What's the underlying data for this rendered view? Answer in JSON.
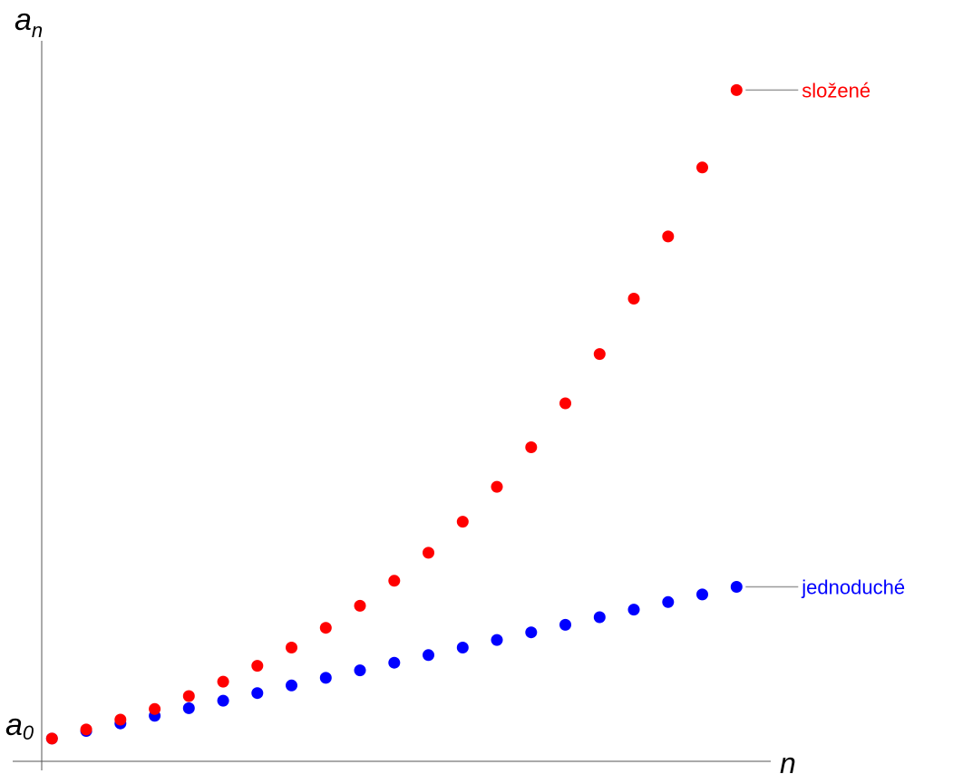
{
  "chart_data": {
    "type": "scatter",
    "title": "",
    "xlabel": "n",
    "ylabel": "a",
    "ylabel_subscript": "n",
    "y0_label": "a",
    "y0_label_subscript": "0",
    "x": [
      0,
      1,
      2,
      3,
      4,
      5,
      6,
      7,
      8,
      9,
      10,
      11,
      12,
      13,
      14,
      15,
      16,
      17,
      18,
      19,
      20
    ],
    "xlim": [
      -0.3,
      21.0
    ],
    "ylim": [
      0.7,
      10.2
    ],
    "grid": false,
    "legend": "inline labels at end of series",
    "series": [
      {
        "name": "jednoduché",
        "color": "#0000ff",
        "values": [
          1.0,
          1.1,
          1.2,
          1.3,
          1.4,
          1.5,
          1.6,
          1.7,
          1.8,
          1.9,
          2.0,
          2.1,
          2.2,
          2.3,
          2.4,
          2.5,
          2.6,
          2.7,
          2.8,
          2.9,
          3.0
        ]
      },
      {
        "name": "složené",
        "color": "#ff0000",
        "values": [
          1.0,
          1.12,
          1.25,
          1.39,
          1.56,
          1.75,
          1.96,
          2.2,
          2.46,
          2.75,
          3.08,
          3.45,
          3.86,
          4.32,
          4.84,
          5.42,
          6.07,
          6.8,
          7.62,
          8.53,
          9.55
        ]
      }
    ]
  }
}
